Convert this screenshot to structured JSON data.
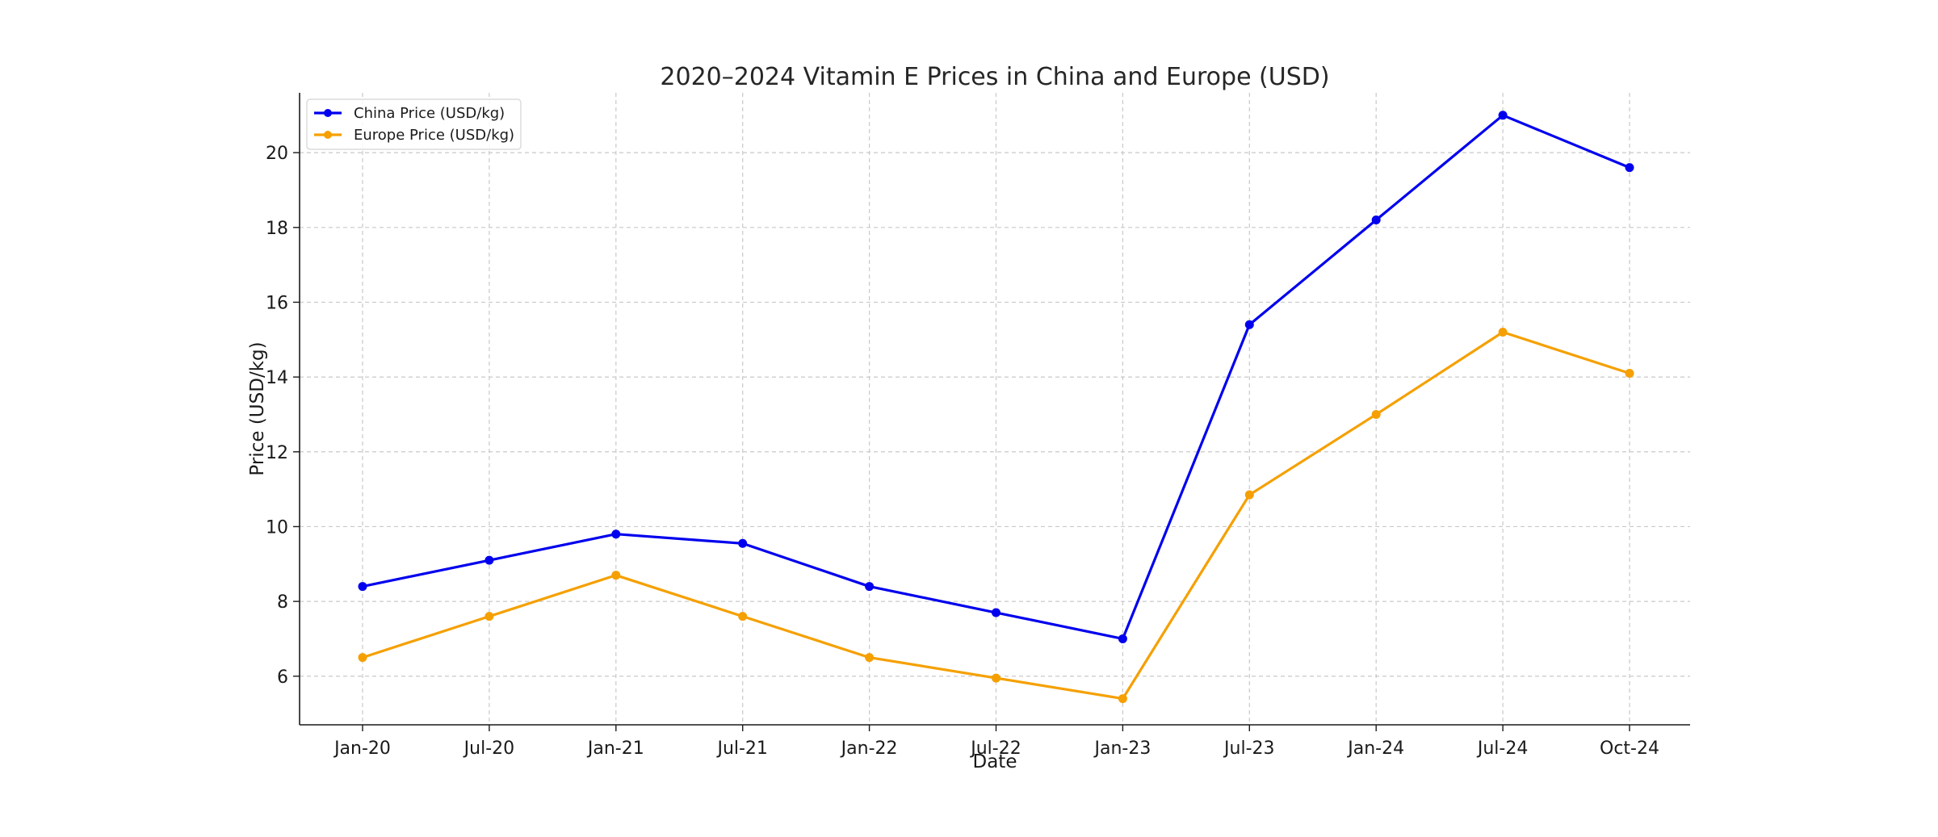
{
  "chart_data": {
    "type": "line",
    "title": "2020–2024 Vitamin E Prices in China and Europe (USD)",
    "xlabel": "Date",
    "ylabel": "Price (USD/kg)",
    "categories": [
      "Jan-20",
      "Jul-20",
      "Jan-21",
      "Jul-21",
      "Jan-22",
      "Jul-22",
      "Jan-23",
      "Jul-23",
      "Jan-24",
      "Jul-24",
      "Oct-24"
    ],
    "ylim": [
      4.7,
      21.6
    ],
    "yticks": [
      6,
      8,
      10,
      12,
      14,
      16,
      18,
      20
    ],
    "grid": true,
    "legend_position": "top-left",
    "series": [
      {
        "name": "China Price (USD/kg)",
        "color": "#0000ee",
        "values": [
          8.4,
          9.1,
          9.8,
          9.55,
          8.4,
          7.7,
          7.0,
          15.4,
          18.2,
          21.0,
          19.6
        ]
      },
      {
        "name": "Europe Price (USD/kg)",
        "color": "#f5a000",
        "values": [
          6.5,
          7.6,
          8.7,
          7.6,
          6.5,
          5.95,
          5.4,
          10.85,
          13.0,
          15.2,
          14.1
        ]
      }
    ]
  }
}
